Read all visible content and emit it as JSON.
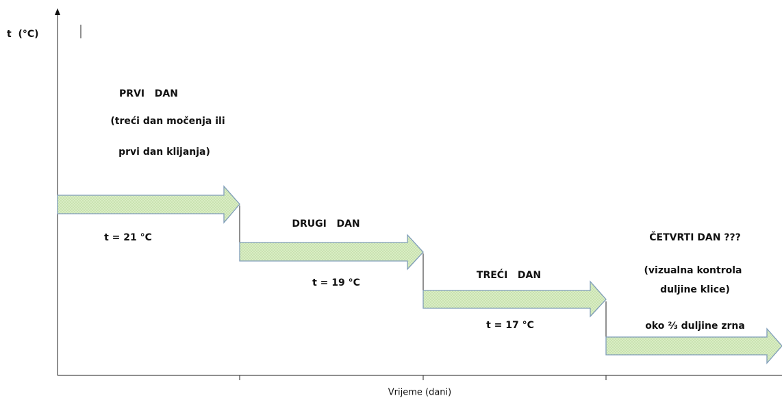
{
  "y_axis_label": "t  (°C)",
  "x_axis_label": "Vrijeme (dani)",
  "steps": [
    {
      "lines": [
        "PRVI   DAN",
        "(treći dan močenja ili",
        "prvi dan klijanja)"
      ],
      "temperature": "t = 21 °C"
    },
    {
      "lines": [
        "DRUGI   DAN"
      ],
      "temperature": "t = 19 °C"
    },
    {
      "lines": [
        "TREĆI   DAN"
      ],
      "temperature": "t = 17 °C"
    },
    {
      "lines": [
        "ČETVRTI DAN ???",
        "(vizualna kontrola",
        "duljine klice)",
        "oko ⅔ duljine zrna"
      ]
    }
  ]
}
